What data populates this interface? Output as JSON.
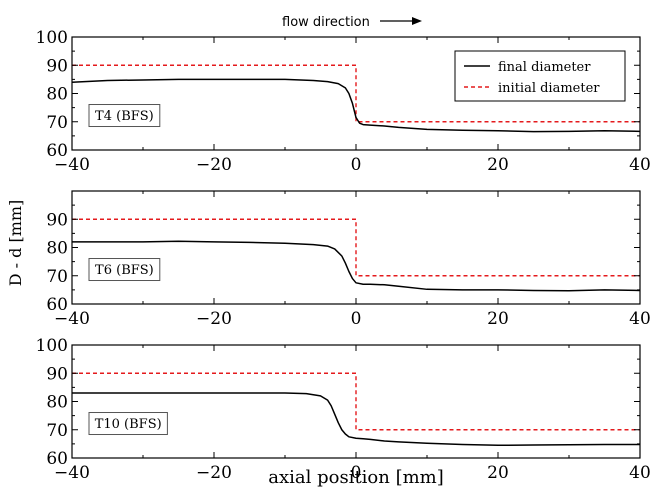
{
  "chart_data": [
    {
      "type": "line",
      "panel_label": "T4 (BFS)",
      "xlim": [
        -40,
        40
      ],
      "ylim": [
        60,
        100
      ],
      "xticks": [
        -40,
        -20,
        0,
        20,
        40
      ],
      "yticks": [
        60,
        70,
        80,
        90,
        100
      ],
      "series": [
        {
          "name": "final diameter",
          "color": "#000000",
          "style": "solid",
          "x": [
            -40,
            -35,
            -30,
            -25,
            -20,
            -15,
            -10,
            -6,
            -4,
            -2.5,
            -1.5,
            -1,
            -0.5,
            0,
            0.5,
            1,
            2,
            4,
            6,
            10,
            15,
            20,
            25,
            30,
            35,
            40
          ],
          "y": [
            84.0,
            84.6,
            84.8,
            85.0,
            85.0,
            85.0,
            85.0,
            84.6,
            84.2,
            83.5,
            82.0,
            80.0,
            76.5,
            71.5,
            69.5,
            69.0,
            68.8,
            68.5,
            68.0,
            67.3,
            67.0,
            66.8,
            66.5,
            66.6,
            66.8,
            66.6
          ]
        },
        {
          "name": "initial diameter",
          "color": "#e41a1c",
          "style": "dashed",
          "x": [
            -40,
            0,
            0,
            40
          ],
          "y": [
            90,
            90,
            70,
            70
          ]
        }
      ],
      "legend": [
        "final diameter",
        "initial diameter"
      ],
      "legend_position": "top-right",
      "annotation": "flow direction"
    },
    {
      "type": "line",
      "panel_label": "T6 (BFS)",
      "xlim": [
        -40,
        40
      ],
      "ylim": [
        60,
        100
      ],
      "xticks": [
        -40,
        -20,
        0,
        20,
        40
      ],
      "yticks": [
        60,
        70,
        80,
        90
      ],
      "series": [
        {
          "name": "final diameter",
          "color": "#000000",
          "style": "solid",
          "x": [
            -40,
            -35,
            -30,
            -25,
            -20,
            -15,
            -10,
            -6,
            -4,
            -3,
            -2,
            -1.5,
            -1,
            -0.5,
            0,
            1,
            2,
            4,
            6,
            10,
            15,
            20,
            25,
            30,
            35,
            40
          ],
          "y": [
            82.0,
            82.0,
            82.0,
            82.2,
            82.0,
            81.8,
            81.5,
            81.0,
            80.5,
            79.5,
            77.0,
            74.5,
            71.5,
            69.0,
            67.5,
            67.0,
            67.0,
            66.8,
            66.3,
            65.2,
            65.0,
            65.0,
            64.8,
            64.7,
            65.0,
            64.8
          ]
        },
        {
          "name": "initial diameter",
          "color": "#e41a1c",
          "style": "dashed",
          "x": [
            -40,
            0,
            0,
            40
          ],
          "y": [
            90,
            90,
            70,
            70
          ]
        }
      ]
    },
    {
      "type": "line",
      "panel_label": "T10 (BFS)",
      "xlim": [
        -40,
        40
      ],
      "ylim": [
        60,
        100
      ],
      "xticks": [
        -40,
        -20,
        0,
        20,
        40
      ],
      "yticks": [
        60,
        70,
        80,
        90,
        100
      ],
      "series": [
        {
          "name": "final diameter",
          "color": "#000000",
          "style": "solid",
          "x": [
            -40,
            -35,
            -30,
            -25,
            -20,
            -15,
            -10,
            -7,
            -5,
            -4,
            -3.5,
            -3,
            -2.5,
            -2,
            -1.5,
            -1,
            0,
            1,
            2,
            4,
            6,
            10,
            15,
            20,
            25,
            30,
            35,
            40
          ],
          "y": [
            83.0,
            83.0,
            83.0,
            83.0,
            83.0,
            83.0,
            83.0,
            82.8,
            82.0,
            80.5,
            78.5,
            75.5,
            72.5,
            70.0,
            68.5,
            67.5,
            67.0,
            66.8,
            66.6,
            66.0,
            65.7,
            65.2,
            64.8,
            64.5,
            64.6,
            64.7,
            64.8,
            64.8
          ]
        },
        {
          "name": "initial diameter",
          "color": "#e41a1c",
          "style": "dashed",
          "x": [
            -40,
            0,
            0,
            40
          ],
          "y": [
            90,
            90,
            70,
            70
          ]
        }
      ]
    }
  ],
  "ylabel": "D - d [mm]",
  "xlabel": "axial position [mm]",
  "flow_label": "flow direction"
}
